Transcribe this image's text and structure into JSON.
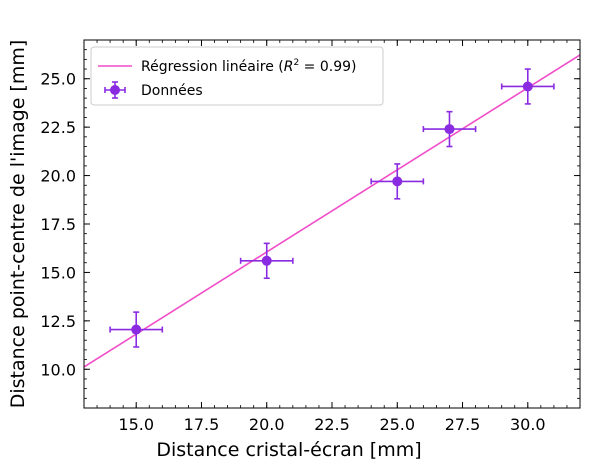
{
  "chart_data": {
    "type": "scatter",
    "xlabel": "Distance cristal-écran [mm]",
    "ylabel": "Distance point-centre de l'image [mm]",
    "xlim": [
      13.0,
      32.0
    ],
    "ylim": [
      8.0,
      27.0
    ],
    "xticks": [
      15.0,
      17.5,
      20.0,
      22.5,
      25.0,
      27.5,
      30.0
    ],
    "yticks": [
      10.0,
      12.5,
      15.0,
      17.5,
      20.0,
      22.5,
      25.0
    ],
    "xtick_labels": [
      "15.0",
      "17.5",
      "20.0",
      "22.5",
      "25.0",
      "27.5",
      "30.0"
    ],
    "ytick_labels": [
      "10.0",
      "12.5",
      "15.0",
      "17.5",
      "20.0",
      "22.5",
      "25.0"
    ],
    "grid": false,
    "legend_position": "top-left",
    "series": [
      {
        "name": "Données",
        "kind": "errorbar",
        "color": "#8a2be2",
        "points": [
          {
            "x": 15.0,
            "y": 12.05,
            "xerr": 1.0,
            "yerr": 0.9
          },
          {
            "x": 20.0,
            "y": 15.6,
            "xerr": 1.0,
            "yerr": 0.9
          },
          {
            "x": 25.0,
            "y": 19.7,
            "xerr": 1.0,
            "yerr": 0.9
          },
          {
            "x": 27.0,
            "y": 22.4,
            "xerr": 1.0,
            "yerr": 0.9
          },
          {
            "x": 30.0,
            "y": 24.6,
            "xerr": 1.0,
            "yerr": 0.9
          }
        ]
      },
      {
        "name": "Régression linéaire (R² = 0.99)",
        "kind": "line",
        "color": "#f04dc8",
        "x": [
          13.0,
          32.0
        ],
        "y": [
          10.12,
          26.23
        ]
      }
    ],
    "legend": [
      {
        "label_prefix": "Régression linéaire (",
        "label_math": "R",
        "label_sup": "2",
        "label_suffix": " = 0.99)",
        "marker": "line",
        "color": "#f04dc8"
      },
      {
        "label": "Données",
        "marker": "errorbar",
        "color": "#8a2be2"
      }
    ]
  }
}
